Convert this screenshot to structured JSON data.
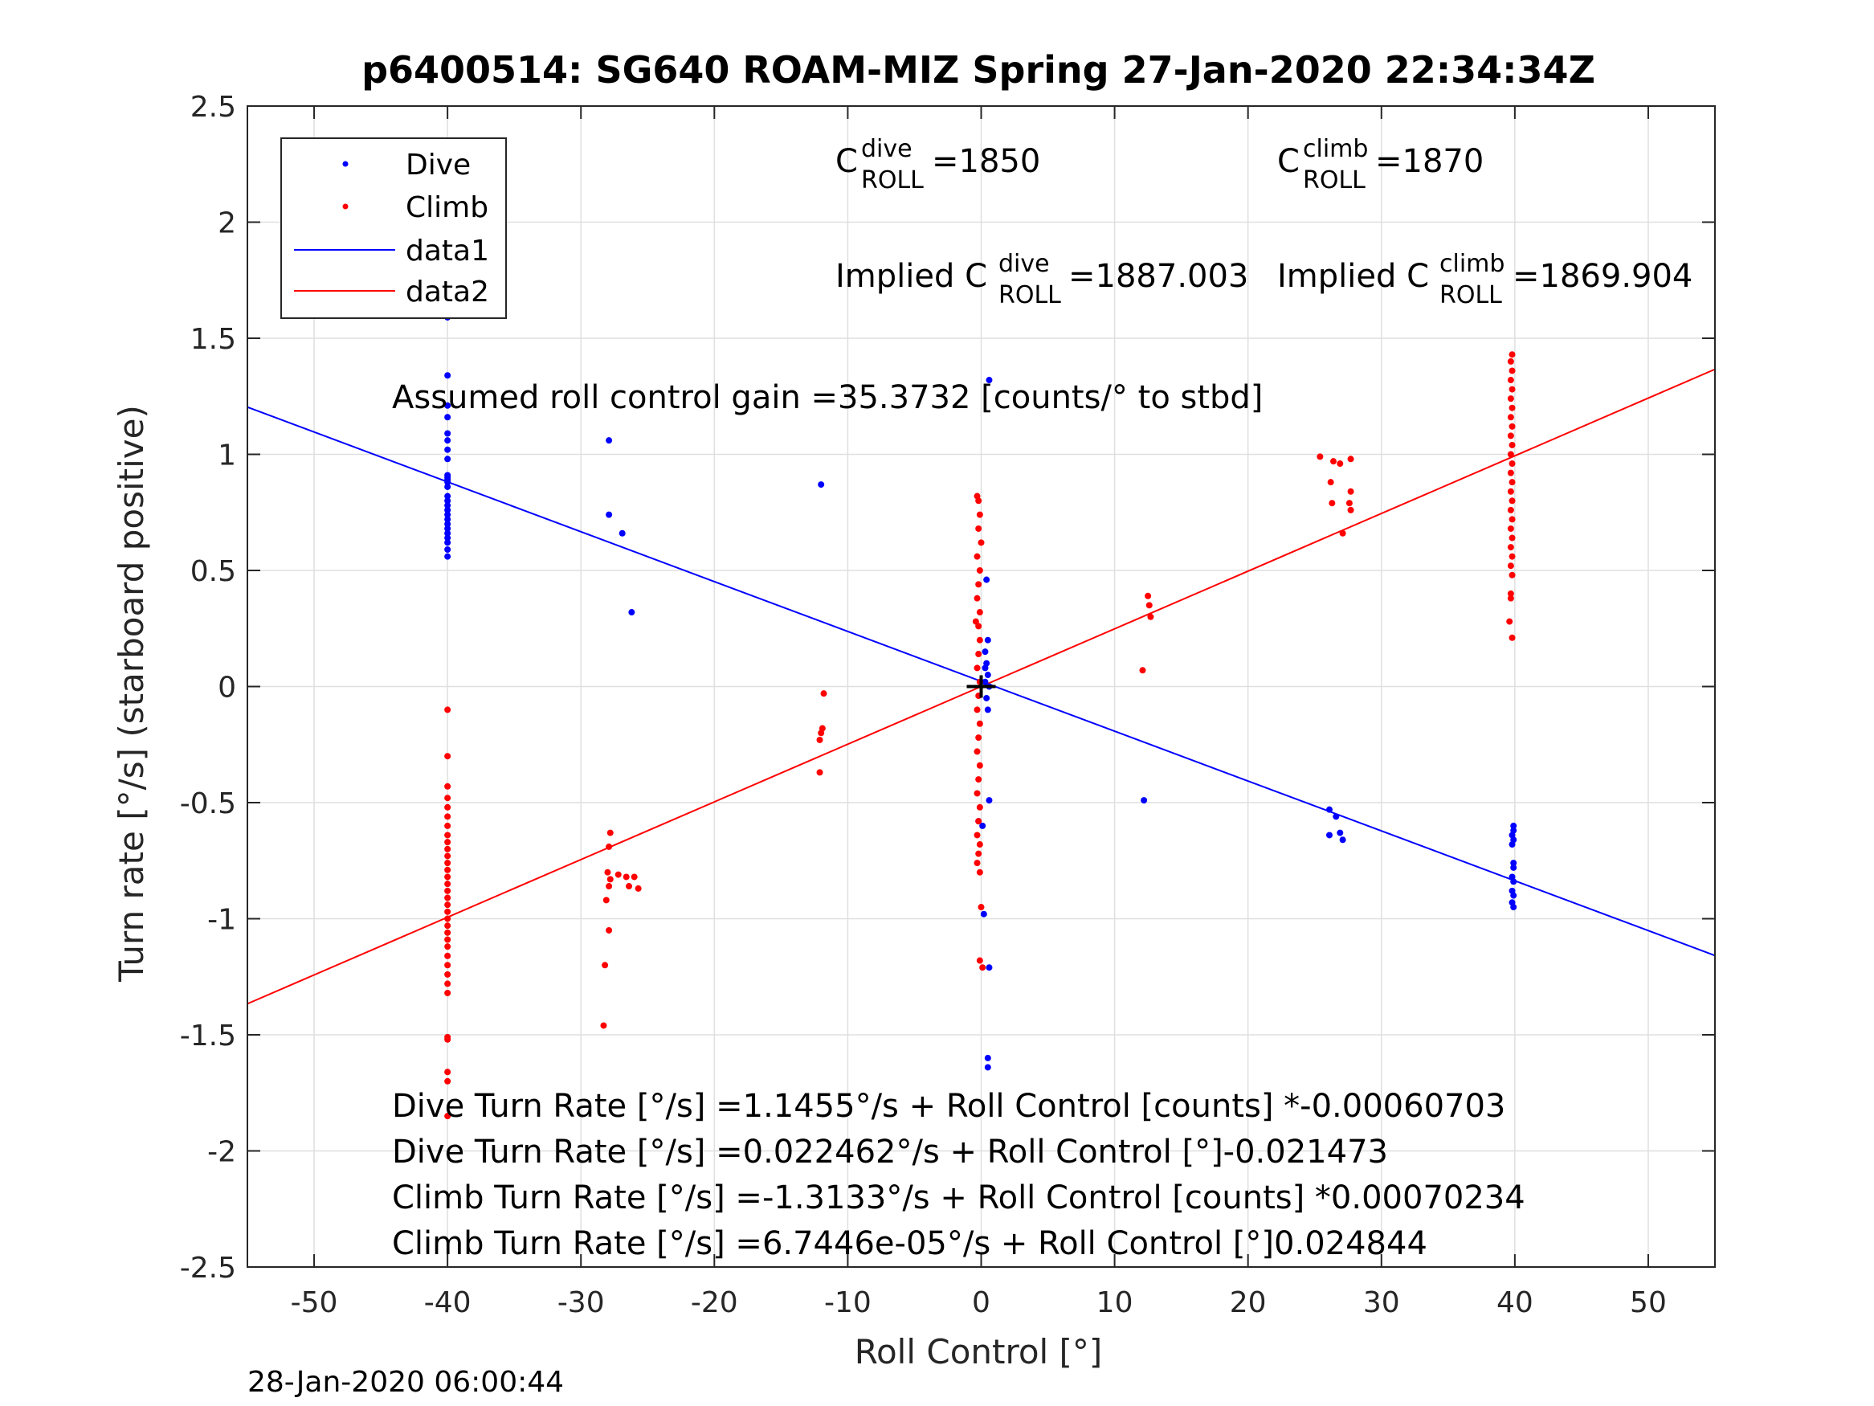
{
  "chart_data": {
    "type": "scatter",
    "title": "p6400514: SG640 ROAM-MIZ Spring 27-Jan-2020 22:34:34Z",
    "xlabel": "Roll Control [°]",
    "ylabel": "Turn rate [°/s] (starboard positive)",
    "xlim": [
      -55,
      55
    ],
    "ylim": [
      -2.5,
      2.5
    ],
    "xticks": [
      -50,
      -40,
      -30,
      -20,
      -10,
      0,
      10,
      20,
      30,
      40,
      50
    ],
    "xtick_labels": [
      "-50",
      "-40",
      "-30",
      "-20",
      "-10",
      "0",
      "10",
      "20",
      "30",
      "40",
      "50"
    ],
    "yticks": [
      -2.5,
      -2,
      -1.5,
      -1,
      -0.5,
      0,
      0.5,
      1,
      1.5,
      2,
      2.5
    ],
    "ytick_labels": [
      "-2.5",
      "-2",
      "-1.5",
      "-1",
      "-0.5",
      "0",
      "0.5",
      "1",
      "1.5",
      "2",
      "2.5"
    ],
    "grid": true,
    "legend_position": "top-left",
    "colors": {
      "dive": "#0000ff",
      "climb": "#ff0000",
      "marker": "#000000"
    },
    "series": [
      {
        "name": "Dive",
        "kind": "points",
        "points": [
          [
            -40,
            1.83
          ],
          [
            -40,
            1.7
          ],
          [
            -40,
            1.59
          ],
          [
            -40,
            1.34
          ],
          [
            -40,
            1.21
          ],
          [
            -40,
            1.16
          ],
          [
            -40,
            1.09
          ],
          [
            -40,
            1.06
          ],
          [
            -40,
            1.02
          ],
          [
            -40,
            0.98
          ],
          [
            -40,
            0.91
          ],
          [
            -40,
            0.9
          ],
          [
            -40,
            0.89
          ],
          [
            -40,
            0.88
          ],
          [
            -40,
            0.86
          ],
          [
            -40,
            0.82
          ],
          [
            -40,
            0.8
          ],
          [
            -40,
            0.78
          ],
          [
            -40,
            0.76
          ],
          [
            -40,
            0.74
          ],
          [
            -40,
            0.72
          ],
          [
            -40,
            0.7
          ],
          [
            -40,
            0.68
          ],
          [
            -40,
            0.66
          ],
          [
            -40,
            0.64
          ],
          [
            -40,
            0.62
          ],
          [
            -40,
            0.59
          ],
          [
            -40,
            0.56
          ],
          [
            -27.9,
            1.06
          ],
          [
            -27.9,
            0.74
          ],
          [
            -26.9,
            0.66
          ],
          [
            -26.2,
            0.32
          ],
          [
            -12.0,
            0.87
          ],
          [
            0.6,
            1.32
          ],
          [
            0.4,
            0.46
          ],
          [
            0.5,
            0.2
          ],
          [
            0.3,
            0.15
          ],
          [
            0.4,
            0.1
          ],
          [
            0.5,
            0.05
          ],
          [
            0.3,
            0.02
          ],
          [
            0.6,
            0.0
          ],
          [
            0.4,
            -0.05
          ],
          [
            0.5,
            -0.1
          ],
          [
            0.3,
            0.08
          ],
          [
            0.6,
            -0.49
          ],
          [
            -0.2,
            -0.58
          ],
          [
            0.1,
            -0.6
          ],
          [
            0.2,
            -0.98
          ],
          [
            0.6,
            -1.21
          ],
          [
            0.5,
            -1.6
          ],
          [
            0.5,
            -1.64
          ],
          [
            12.2,
            -0.49
          ],
          [
            26.1,
            -0.53
          ],
          [
            26.6,
            -0.56
          ],
          [
            26.1,
            -0.64
          ],
          [
            26.9,
            -0.63
          ],
          [
            27.1,
            -0.66
          ],
          [
            39.9,
            -0.6
          ],
          [
            39.9,
            -0.62
          ],
          [
            39.8,
            -0.64
          ],
          [
            39.9,
            -0.66
          ],
          [
            39.8,
            -0.68
          ],
          [
            39.9,
            -0.76
          ],
          [
            39.9,
            -0.78
          ],
          [
            39.8,
            -0.82
          ],
          [
            39.9,
            -0.84
          ],
          [
            39.8,
            -0.88
          ],
          [
            39.9,
            -0.9
          ],
          [
            39.8,
            -0.93
          ],
          [
            39.9,
            -0.95
          ]
        ]
      },
      {
        "name": "Climb",
        "kind": "points",
        "points": [
          [
            -40,
            -0.1
          ],
          [
            -40,
            -0.3
          ],
          [
            -40,
            -0.43
          ],
          [
            -40,
            -0.48
          ],
          [
            -40,
            -0.52
          ],
          [
            -40,
            -0.56
          ],
          [
            -40,
            -0.6
          ],
          [
            -40,
            -0.64
          ],
          [
            -40,
            -0.67
          ],
          [
            -40,
            -0.7
          ],
          [
            -40,
            -0.73
          ],
          [
            -40,
            -0.76
          ],
          [
            -40,
            -0.79
          ],
          [
            -40,
            -0.82
          ],
          [
            -40,
            -0.85
          ],
          [
            -40,
            -0.88
          ],
          [
            -40,
            -0.91
          ],
          [
            -40,
            -0.94
          ],
          [
            -40,
            -0.97
          ],
          [
            -40,
            -1.0
          ],
          [
            -40,
            -1.03
          ],
          [
            -40,
            -1.06
          ],
          [
            -40,
            -1.09
          ],
          [
            -40,
            -1.12
          ],
          [
            -40,
            -1.16
          ],
          [
            -40,
            -1.2
          ],
          [
            -40,
            -1.24
          ],
          [
            -40,
            -1.28
          ],
          [
            -40,
            -1.32
          ],
          [
            -40,
            -1.51
          ],
          [
            -40,
            -1.52
          ],
          [
            -40,
            -1.66
          ],
          [
            -40,
            -1.7
          ],
          [
            -40,
            -1.85
          ],
          [
            -27.8,
            -0.63
          ],
          [
            -27.9,
            -0.69
          ],
          [
            -28.0,
            -0.8
          ],
          [
            -27.8,
            -0.83
          ],
          [
            -27.2,
            -0.81
          ],
          [
            -26.6,
            -0.82
          ],
          [
            -26.0,
            -0.82
          ],
          [
            -27.9,
            -0.86
          ],
          [
            -26.4,
            -0.86
          ],
          [
            -25.7,
            -0.87
          ],
          [
            -28.1,
            -0.92
          ],
          [
            -27.9,
            -1.05
          ],
          [
            -28.2,
            -1.2
          ],
          [
            -28.3,
            -1.46
          ],
          [
            -11.8,
            -0.03
          ],
          [
            -11.9,
            -0.18
          ],
          [
            -12.0,
            -0.2
          ],
          [
            -12.1,
            -0.23
          ],
          [
            -12.1,
            -0.37
          ],
          [
            -0.3,
            0.82
          ],
          [
            -0.2,
            0.8
          ],
          [
            -0.1,
            0.74
          ],
          [
            -0.2,
            0.68
          ],
          [
            0.0,
            0.62
          ],
          [
            -0.3,
            0.56
          ],
          [
            -0.1,
            0.5
          ],
          [
            -0.2,
            0.44
          ],
          [
            -0.3,
            0.38
          ],
          [
            -0.1,
            0.32
          ],
          [
            -0.2,
            0.26
          ],
          [
            -0.4,
            0.28
          ],
          [
            -0.1,
            0.2
          ],
          [
            -0.2,
            0.14
          ],
          [
            -0.3,
            0.08
          ],
          [
            -0.1,
            0.02
          ],
          [
            -0.2,
            -0.04
          ],
          [
            -0.3,
            -0.1
          ],
          [
            -0.1,
            -0.16
          ],
          [
            -0.2,
            -0.22
          ],
          [
            -0.3,
            -0.28
          ],
          [
            -0.1,
            -0.34
          ],
          [
            -0.2,
            -0.4
          ],
          [
            -0.3,
            -0.46
          ],
          [
            -0.1,
            -0.52
          ],
          [
            -0.2,
            -0.58
          ],
          [
            -0.3,
            -0.64
          ],
          [
            -0.1,
            -0.68
          ],
          [
            -0.2,
            -0.72
          ],
          [
            -0.3,
            -0.76
          ],
          [
            -0.1,
            -0.8
          ],
          [
            0.0,
            -0.95
          ],
          [
            -0.1,
            -1.18
          ],
          [
            0.1,
            -1.21
          ],
          [
            12.5,
            0.39
          ],
          [
            12.6,
            0.35
          ],
          [
            12.7,
            0.3
          ],
          [
            12.1,
            0.07
          ],
          [
            25.4,
            0.99
          ],
          [
            26.4,
            0.97
          ],
          [
            27.7,
            0.98
          ],
          [
            26.9,
            0.96
          ],
          [
            26.2,
            0.88
          ],
          [
            27.7,
            0.84
          ],
          [
            26.3,
            0.79
          ],
          [
            27.6,
            0.79
          ],
          [
            27.7,
            0.76
          ],
          [
            27.1,
            0.66
          ],
          [
            39.8,
            1.43
          ],
          [
            39.7,
            1.4
          ],
          [
            39.8,
            1.36
          ],
          [
            39.7,
            1.32
          ],
          [
            39.8,
            1.28
          ],
          [
            39.7,
            1.24
          ],
          [
            39.8,
            1.2
          ],
          [
            39.7,
            1.16
          ],
          [
            39.8,
            1.12
          ],
          [
            39.7,
            1.08
          ],
          [
            39.8,
            1.04
          ],
          [
            39.7,
            1.0
          ],
          [
            39.8,
            0.96
          ],
          [
            39.7,
            0.92
          ],
          [
            39.8,
            0.88
          ],
          [
            39.7,
            0.84
          ],
          [
            39.8,
            0.8
          ],
          [
            39.7,
            0.76
          ],
          [
            39.8,
            0.72
          ],
          [
            39.7,
            0.68
          ],
          [
            39.8,
            0.64
          ],
          [
            39.7,
            0.6
          ],
          [
            39.8,
            0.56
          ],
          [
            39.7,
            0.52
          ],
          [
            39.8,
            0.48
          ],
          [
            39.7,
            0.4
          ],
          [
            39.7,
            0.38
          ],
          [
            39.6,
            0.28
          ],
          [
            39.8,
            0.21
          ]
        ]
      },
      {
        "name": "data1",
        "kind": "line",
        "x": [
          -55,
          55
        ],
        "y": [
          1.2035,
          -1.1586
        ]
      },
      {
        "name": "data2",
        "kind": "line",
        "x": [
          -55,
          55
        ],
        "y": [
          -1.3663,
          1.3664
        ]
      }
    ],
    "crosshair": {
      "x": 0,
      "y": 0
    },
    "annotations": {
      "c_dive": {
        "base": "C",
        "sup": "dive",
        "sub": "ROLL",
        "value": " =1850"
      },
      "c_climb": {
        "base": "C",
        "sup": "climb",
        "sub": "ROLL",
        "value": " =1870"
      },
      "implied_dive": {
        "prefix": "Implied C",
        "sup": "dive",
        "sub": "ROLL",
        "value": " =1887.003"
      },
      "implied_climb": {
        "prefix": "Implied C",
        "sup": "climb",
        "sub": "ROLL",
        "value": " =1869.904"
      },
      "gain": "Assumed roll control gain =35.3732 [counts/° to stbd]",
      "eq1": "Dive Turn Rate [°/s] =1.1455°/s + Roll Control [counts] *-0.00060703",
      "eq2": "Dive Turn Rate [°/s] =0.022462°/s + Roll Control [°]-0.021473",
      "eq3": "Climb Turn Rate [°/s] =-1.3133°/s + Roll Control [counts] *0.00070234",
      "eq4": "Climb Turn Rate [°/s] =6.7446e-05°/s + Roll Control [°]0.024844"
    },
    "footer": "28-Jan-2020 06:00:44"
  }
}
